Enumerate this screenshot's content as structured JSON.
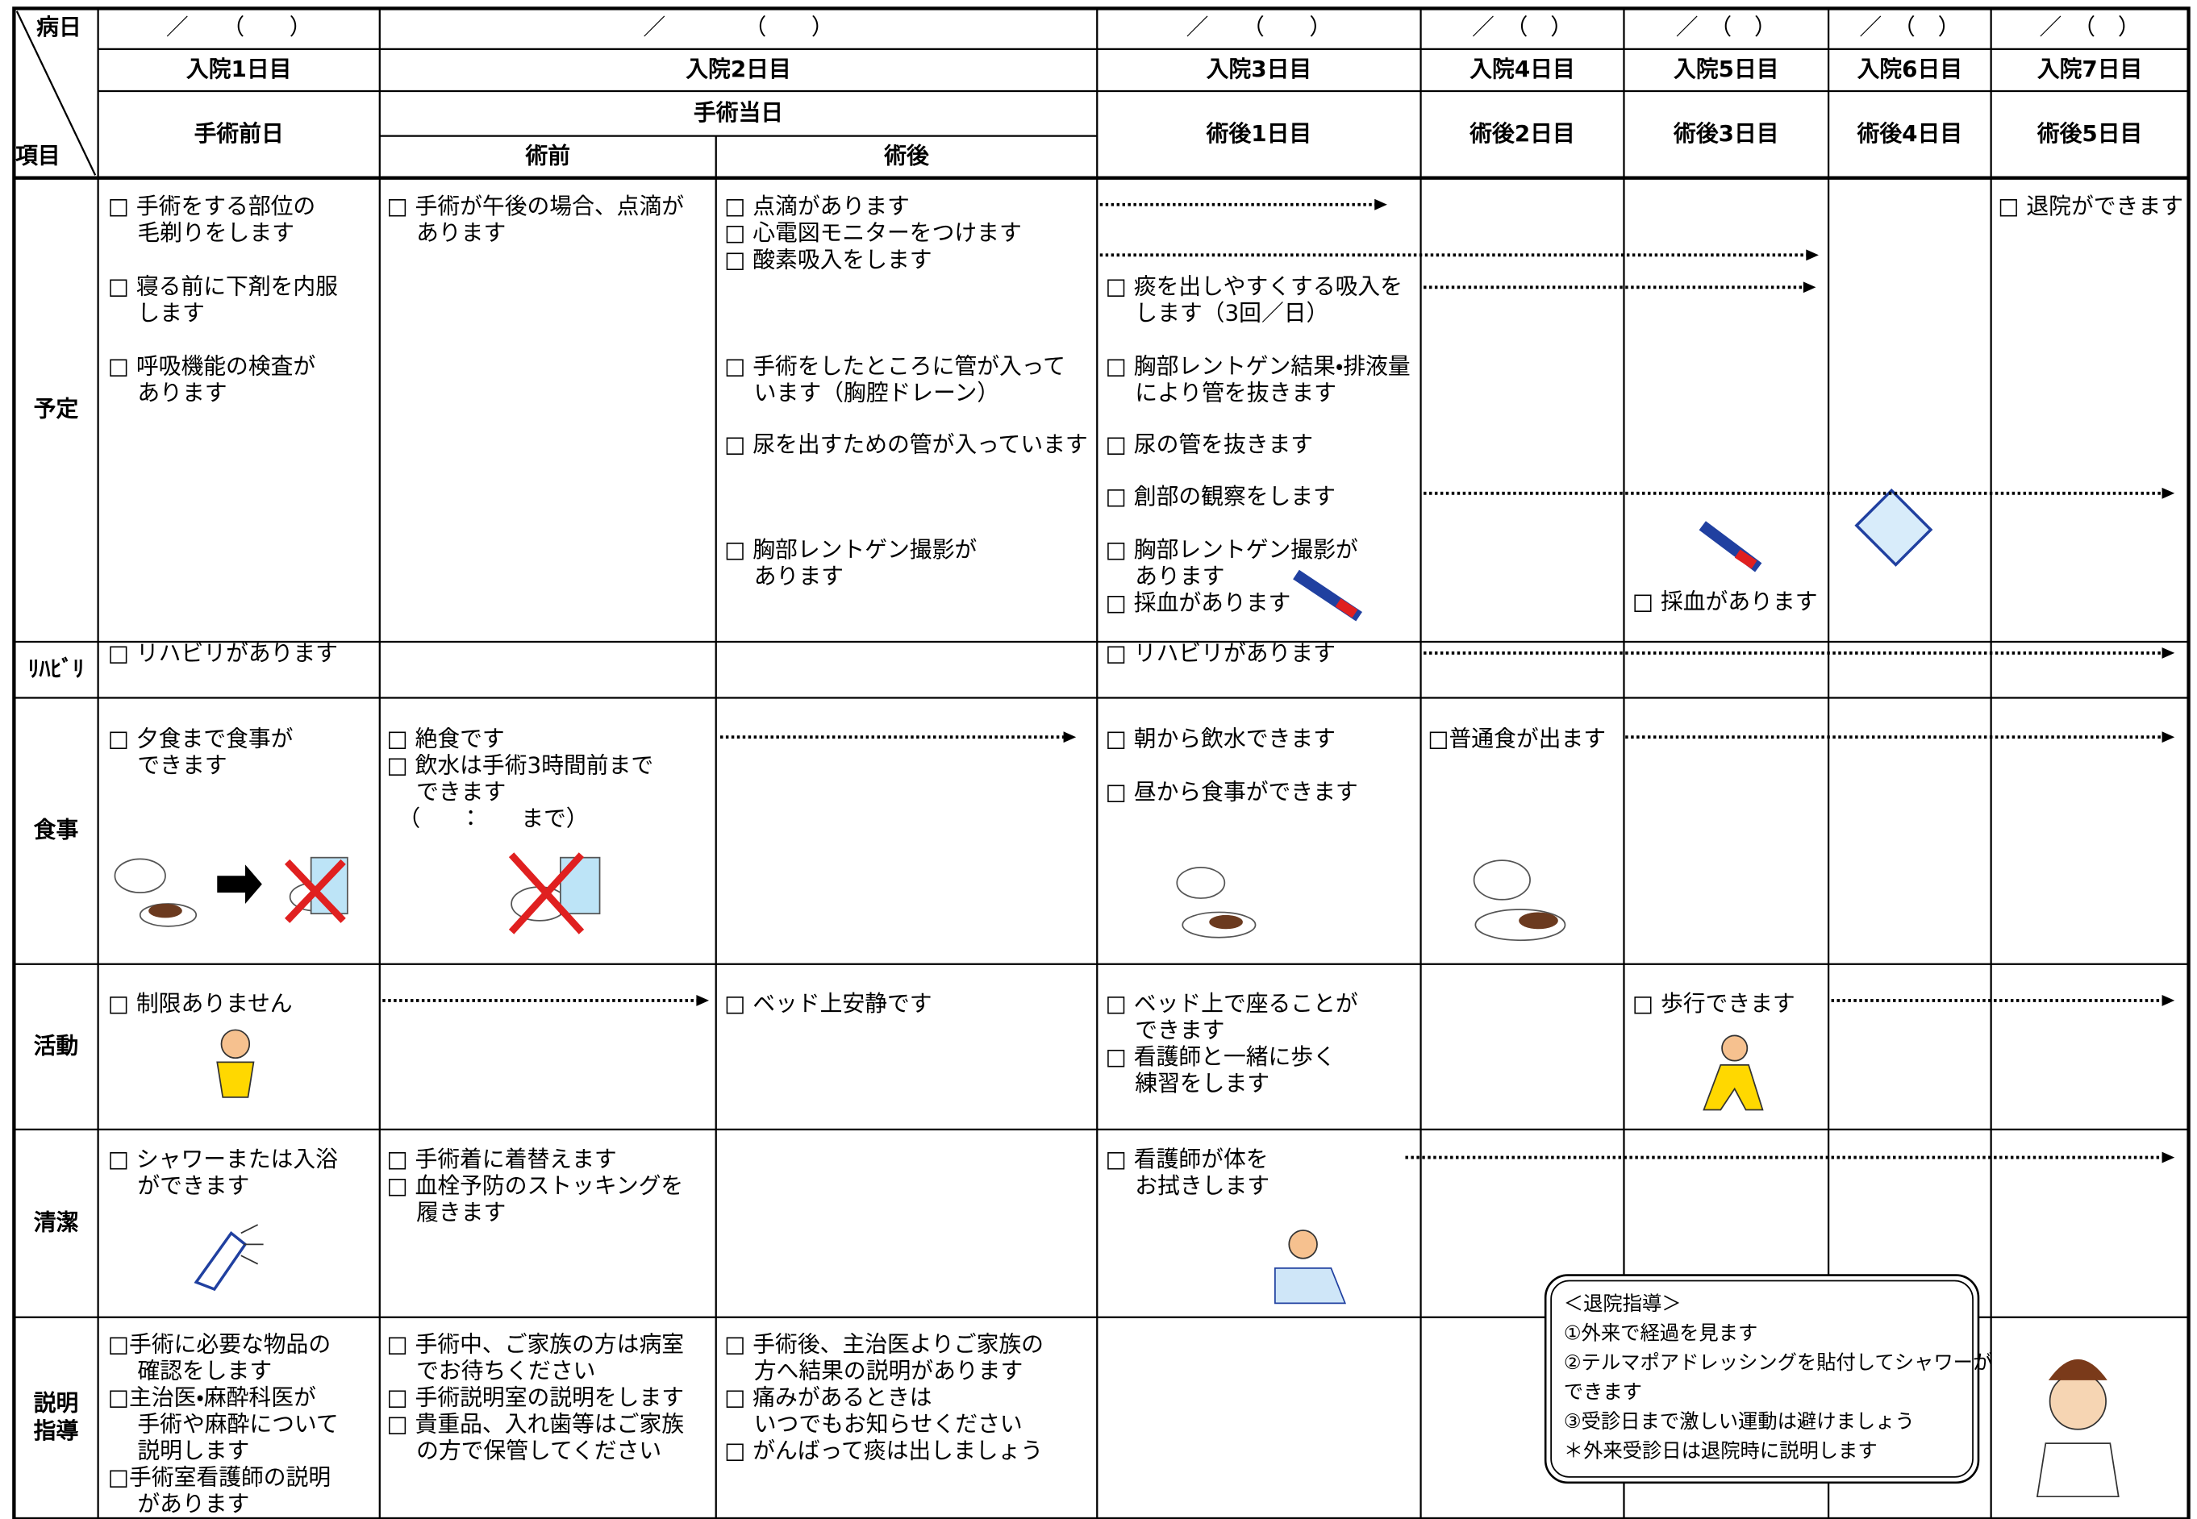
{
  "header": {
    "corner_top": "病日",
    "corner_bottom": "項目",
    "dates": [
      "／　　（　　）",
      "／　　　　（　　）",
      "／　　（　　）",
      "／　（　）",
      "／　（　）",
      "／　（　）",
      "／　（　）"
    ],
    "days": [
      "入院1日目",
      "入院2日目",
      "入院3日目",
      "入院4日目",
      "入院5日目",
      "入院6日目",
      "入院7日目"
    ],
    "phases": [
      "手術前日",
      "手術当日",
      "術後1日目",
      "術後2日目",
      "術後3日目",
      "術後4日目",
      "術後5日目"
    ],
    "subphases": [
      "術前",
      "術後"
    ]
  },
  "rows": [
    {
      "label": [
        "予定"
      ],
      "items": [
        [
          "□ 手術をする部位の",
          "　 毛剃りをします"
        ],
        [
          "□ 寝る前に下剤を内服",
          "　 します"
        ],
        [
          "□ 呼吸機能の検査が",
          "　 あります"
        ],
        [
          "□ 手術が午後の場合、点滴が",
          "　 あります"
        ],
        [
          "□ 点滴があります",
          "□ 心電図モニターをつけます",
          "□ 酸素吸入をします"
        ],
        [
          "□ 手術をしたところに管が入って",
          "　 います（胸腔ドレーン）"
        ],
        [
          "□ 尿を出すための管が入っています"
        ],
        [
          "□ 胸部レントゲン撮影が",
          "　 あります"
        ],
        [
          "□ 痰を出しやすくする吸入を",
          "　 します（3回／日）"
        ],
        [
          "□ 胸部レントゲン結果・排液量",
          "　 により管を抜きます"
        ],
        [
          "□ 尿の管を抜きます"
        ],
        [
          "□ 創部の観察をします"
        ],
        [
          "□ 胸部レントゲン撮影が",
          "　 あります",
          "□ 採血があります"
        ],
        [
          "□ 採血があります"
        ],
        [
          "□ 退院ができます"
        ]
      ]
    },
    {
      "label": [
        "ﾘﾊﾋﾞﾘ"
      ],
      "items": [
        [
          "□ リハビリがあります"
        ],
        [
          "□ リハビリがあります"
        ]
      ]
    },
    {
      "label": [
        "食事"
      ],
      "items": [
        [
          "□ 夕食まで食事が",
          "　 できます"
        ],
        [
          "□ 絶食です",
          "□ 飲水は手術3時間前まで",
          "　 できます",
          "　（　　：　　まで）"
        ],
        [
          "□ 朝から飲水できます"
        ],
        [
          "□ 昼から食事ができます"
        ],
        [
          "□普通食が出ます"
        ]
      ]
    },
    {
      "label": [
        "活動"
      ],
      "items": [
        [
          "□ 制限ありません"
        ],
        [
          "□ ベッド上安静です"
        ],
        [
          "□ ベッド上で座ることが",
          "　 できます",
          "□ 看護師と一緒に歩く",
          "　 練習をします"
        ],
        [
          "□ 歩行できます"
        ]
      ]
    },
    {
      "label": [
        "清潔"
      ],
      "items": [
        [
          "□ シャワーまたは入浴",
          "　 ができます"
        ],
        [
          "□ 手術着に着替えます",
          "□ 血栓予防のストッキングを",
          "　 履きます"
        ],
        [
          "□ 看護師が体を",
          "　 お拭きします"
        ]
      ]
    },
    {
      "label": [
        "説明",
        "指導"
      ],
      "items": [
        [
          "□手術に必要な物品の",
          "　 確認をします",
          "□主治医・麻酔科医が",
          "　 手術や麻酔について",
          "　 説明します",
          "□手術室看護師の説明",
          "　 があります"
        ],
        [
          "□ 手術中、ご家族の方は病室",
          "　 でお待ちください",
          "□ 手術説明室の説明をします",
          "□ 貴重品、入れ歯等はご家族",
          "　 の方で保管してください"
        ],
        [
          "□ 手術後、主治医よりご家族の",
          "　 方へ結果の説明があります",
          "□ 痛みがあるときは",
          "　 いつでもお知らせください",
          "□ がんばって痰は出しましょう"
        ]
      ]
    }
  ],
  "discharge": {
    "title": "＜退院指導＞",
    "lines": [
      "①外来で経過を見ます",
      "②テルマポアドレッシングを貼付してシャワーが",
      "できます",
      "③受診日まで激しい運動は避けましょう",
      "＊外来受診日は退院時に説明します"
    ]
  }
}
